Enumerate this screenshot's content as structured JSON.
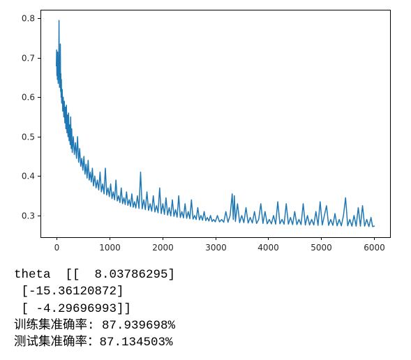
{
  "chart_data": {
    "type": "line",
    "line_color": "#1f77b4",
    "grid": false,
    "legend": "none",
    "xlim": [
      -300,
      6300
    ],
    "ylim": [
      0.245,
      0.822
    ],
    "xticks": [
      0,
      1000,
      2000,
      3000,
      4000,
      5000,
      6000
    ],
    "xtick_labels": [
      "0",
      "1000",
      "2000",
      "3000",
      "4000",
      "5000",
      "6000"
    ],
    "yticks": [
      0.3,
      0.4,
      0.5,
      0.6,
      0.7,
      0.8
    ],
    "ytick_labels": [
      "0.3",
      "0.4",
      "0.5",
      "0.6",
      "0.7",
      "0.8"
    ],
    "x": [
      0,
      5,
      10,
      15,
      20,
      25,
      30,
      35,
      40,
      45,
      50,
      55,
      60,
      65,
      70,
      75,
      80,
      85,
      90,
      95,
      100,
      110,
      120,
      130,
      140,
      150,
      160,
      170,
      180,
      190,
      200,
      210,
      220,
      230,
      240,
      250,
      260,
      270,
      280,
      290,
      300,
      320,
      340,
      360,
      380,
      400,
      420,
      440,
      460,
      480,
      500,
      520,
      540,
      560,
      580,
      600,
      620,
      640,
      660,
      680,
      700,
      725,
      750,
      775,
      800,
      825,
      850,
      875,
      900,
      925,
      950,
      975,
      1000,
      1025,
      1050,
      1075,
      1100,
      1125,
      1150,
      1175,
      1200,
      1225,
      1250,
      1275,
      1300,
      1325,
      1350,
      1375,
      1400,
      1425,
      1450,
      1475,
      1500,
      1530,
      1560,
      1590,
      1620,
      1650,
      1680,
      1710,
      1740,
      1770,
      1800,
      1830,
      1860,
      1890,
      1920,
      1950,
      1980,
      2010,
      2040,
      2070,
      2100,
      2130,
      2160,
      2190,
      2220,
      2250,
      2280,
      2310,
      2340,
      2370,
      2400,
      2430,
      2460,
      2490,
      2520,
      2550,
      2580,
      2610,
      2640,
      2670,
      2700,
      2730,
      2760,
      2790,
      2820,
      2850,
      2880,
      2910,
      2940,
      2970,
      3000,
      3040,
      3080,
      3120,
      3160,
      3200,
      3240,
      3280,
      3320,
      3340,
      3360,
      3380,
      3420,
      3460,
      3500,
      3540,
      3580,
      3620,
      3660,
      3700,
      3740,
      3780,
      3820,
      3860,
      3900,
      3940,
      3980,
      4020,
      4060,
      4100,
      4140,
      4180,
      4220,
      4260,
      4300,
      4340,
      4380,
      4420,
      4460,
      4500,
      4540,
      4580,
      4620,
      4660,
      4700,
      4740,
      4780,
      4820,
      4860,
      4900,
      4940,
      4980,
      5020,
      5060,
      5100,
      5140,
      5180,
      5220,
      5260,
      5300,
      5340,
      5380,
      5420,
      5460,
      5500,
      5540,
      5580,
      5620,
      5660,
      5700,
      5740,
      5780,
      5820,
      5860,
      5900,
      5940,
      5970,
      6000
    ],
    "y": [
      0.68,
      0.72,
      0.655,
      0.7,
      0.645,
      0.715,
      0.665,
      0.635,
      0.69,
      0.65,
      0.795,
      0.66,
      0.625,
      0.7,
      0.64,
      0.735,
      0.615,
      0.66,
      0.6,
      0.645,
      0.585,
      0.62,
      0.565,
      0.6,
      0.55,
      0.59,
      0.535,
      0.575,
      0.52,
      0.58,
      0.51,
      0.555,
      0.5,
      0.56,
      0.49,
      0.53,
      0.48,
      0.55,
      0.47,
      0.52,
      0.46,
      0.5,
      0.455,
      0.485,
      0.445,
      0.5,
      0.435,
      0.47,
      0.425,
      0.445,
      0.415,
      0.45,
      0.405,
      0.43,
      0.395,
      0.44,
      0.39,
      0.41,
      0.385,
      0.42,
      0.375,
      0.4,
      0.37,
      0.39,
      0.365,
      0.41,
      0.36,
      0.38,
      0.355,
      0.42,
      0.352,
      0.37,
      0.348,
      0.38,
      0.343,
      0.36,
      0.34,
      0.39,
      0.337,
      0.35,
      0.333,
      0.37,
      0.33,
      0.345,
      0.328,
      0.36,
      0.326,
      0.34,
      0.323,
      0.355,
      0.321,
      0.335,
      0.319,
      0.35,
      0.318,
      0.41,
      0.317,
      0.34,
      0.315,
      0.36,
      0.313,
      0.33,
      0.311,
      0.35,
      0.309,
      0.325,
      0.307,
      0.37,
      0.305,
      0.33,
      0.303,
      0.345,
      0.301,
      0.32,
      0.299,
      0.34,
      0.298,
      0.315,
      0.296,
      0.35,
      0.295,
      0.31,
      0.294,
      0.33,
      0.293,
      0.31,
      0.292,
      0.34,
      0.291,
      0.3,
      0.29,
      0.32,
      0.289,
      0.3,
      0.288,
      0.31,
      0.287,
      0.295,
      0.286,
      0.3,
      0.285,
      0.29,
      0.284,
      0.3,
      0.284,
      0.29,
      0.283,
      0.31,
      0.283,
      0.3,
      0.355,
      0.29,
      0.35,
      0.285,
      0.33,
      0.282,
      0.3,
      0.282,
      0.32,
      0.281,
      0.295,
      0.281,
      0.31,
      0.28,
      0.29,
      0.33,
      0.28,
      0.31,
      0.279,
      0.29,
      0.279,
      0.3,
      0.278,
      0.335,
      0.279,
      0.29,
      0.278,
      0.33,
      0.278,
      0.295,
      0.277,
      0.31,
      0.277,
      0.29,
      0.277,
      0.33,
      0.276,
      0.3,
      0.276,
      0.29,
      0.276,
      0.31,
      0.275,
      0.335,
      0.276,
      0.3,
      0.325,
      0.275,
      0.29,
      0.275,
      0.305,
      0.274,
      0.29,
      0.274,
      0.3,
      0.345,
      0.274,
      0.29,
      0.273,
      0.3,
      0.273,
      0.32,
      0.273,
      0.325,
      0.273,
      0.29,
      0.272,
      0.295,
      0.272,
      0.273
    ]
  },
  "output": {
    "lines": [
      "theta  [[  8.03786295]",
      " [-15.36120872]",
      " [ -4.29696993]]",
      "训练集准确率: 87.939698%",
      "测试集准确率：87.134503%"
    ]
  }
}
